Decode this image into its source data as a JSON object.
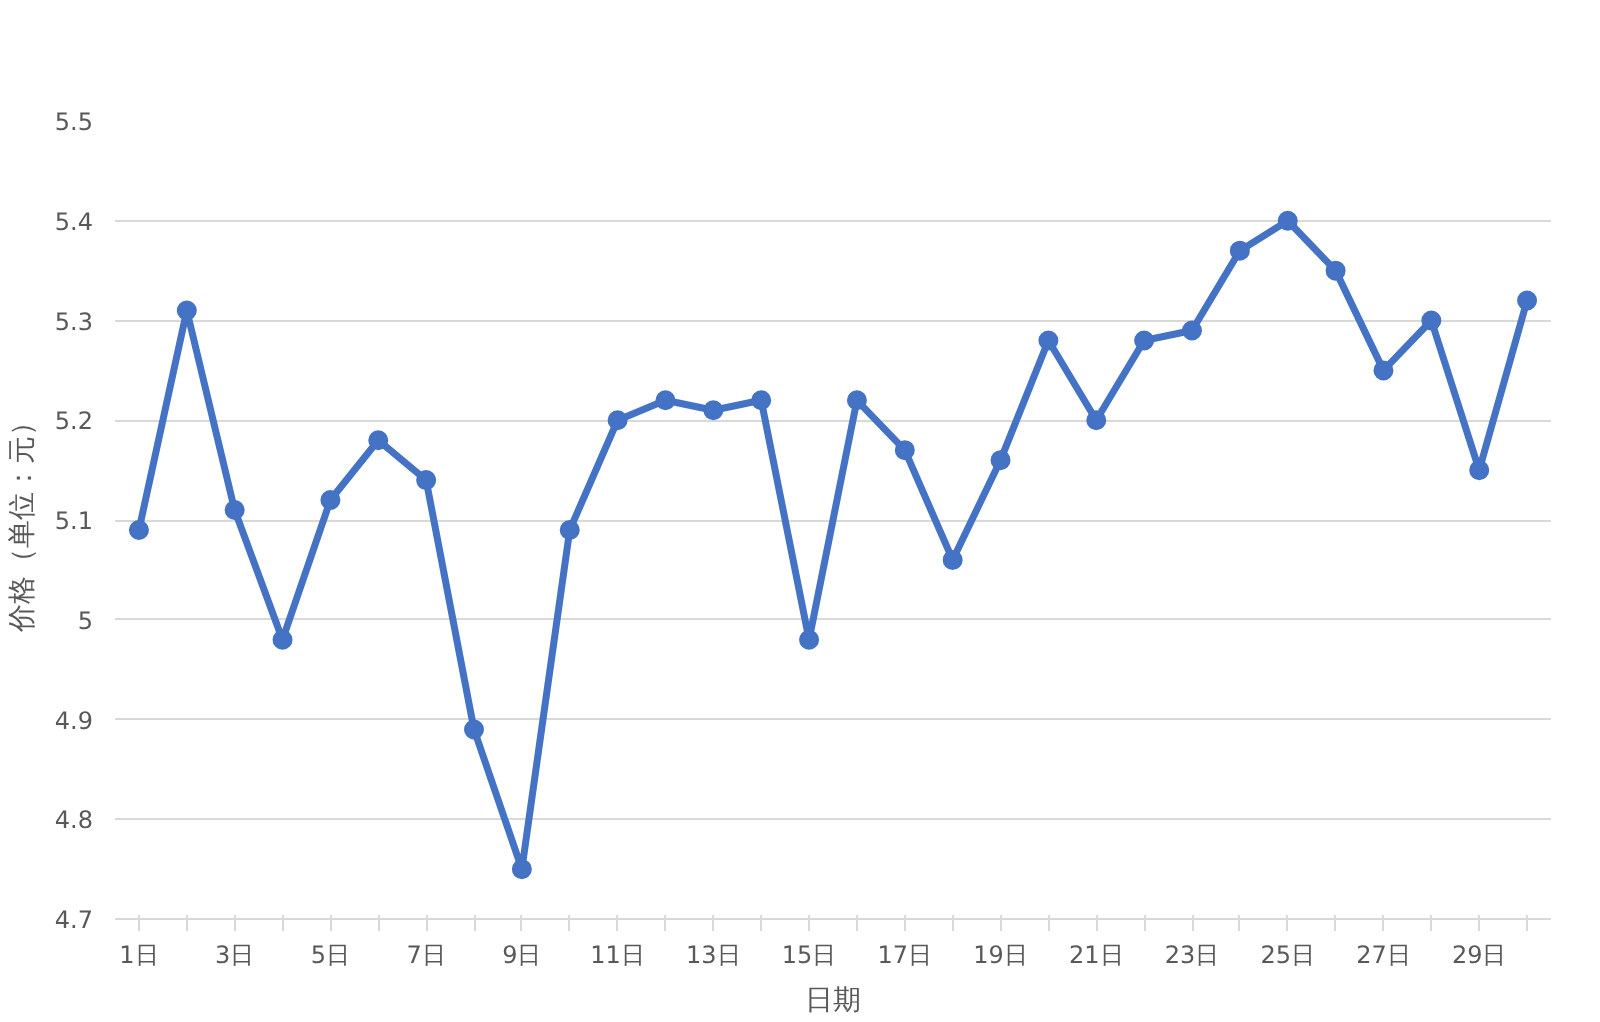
{
  "chart_data": {
    "type": "line",
    "xlabel": "日期",
    "ylabel": "价格（单位：元）",
    "categories": [
      "1日",
      null,
      "3日",
      null,
      "5日",
      null,
      "7日",
      null,
      "9日",
      null,
      "11日",
      null,
      "13日",
      null,
      "15日",
      null,
      "17日",
      null,
      "19日",
      null,
      "21日",
      null,
      "23日",
      null,
      "25日",
      null,
      "27日",
      null,
      "29日",
      null
    ],
    "series": [
      {
        "color": "#4472c4",
        "values": [
          5.09,
          5.31,
          5.11,
          4.98,
          5.12,
          5.18,
          5.14,
          4.89,
          4.75,
          5.09,
          5.2,
          5.22,
          5.21,
          5.22,
          4.98,
          5.22,
          5.17,
          5.06,
          5.16,
          5.28,
          5.2,
          5.28,
          5.29,
          5.37,
          5.4,
          5.35,
          5.25,
          5.3,
          5.15,
          5.32
        ]
      }
    ],
    "ylim": [
      4.7,
      5.5
    ],
    "yticks": [
      4.7,
      4.8,
      4.9,
      5,
      5.1,
      5.2,
      5.3,
      5.4,
      5.5
    ],
    "grid": "y",
    "marker": "circle",
    "line_style": "solid"
  }
}
